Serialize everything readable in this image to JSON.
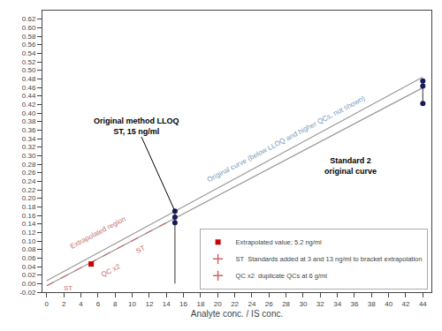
{
  "chart_data": {
    "type": "scatter",
    "xlabel": "Analyte conc. / IS conc.",
    "xlim": [
      -0.5,
      45
    ],
    "ylim": [
      -0.02,
      0.64
    ],
    "xticks": [
      0,
      2,
      4,
      6,
      8,
      10,
      12,
      14,
      16,
      18,
      20,
      22,
      24,
      26,
      28,
      30,
      32,
      34,
      36,
      38,
      40,
      42,
      44
    ],
    "yticks": [
      -0.02,
      {
        "value": 0,
        "label": "0.00"
      },
      0.02,
      0.04,
      0.06,
      0.08,
      {
        "value": 0.1,
        "label": "0.10"
      },
      0.12,
      0.14,
      0.16,
      0.18,
      {
        "value": 0.2,
        "label": "0.20"
      },
      0.22,
      0.24,
      0.26,
      0.28,
      {
        "value": 0.3,
        "label": "0.30"
      },
      0.32,
      0.34,
      0.36,
      0.38,
      {
        "value": 0.4,
        "label": "0.40"
      },
      0.42,
      0.44,
      0.46,
      0.48,
      {
        "value": 0.5,
        "label": "0.50"
      },
      0.52,
      0.54,
      0.56,
      0.58,
      {
        "value": 0.6,
        "label": "0.60"
      },
      0.62
    ],
    "grid": false,
    "legend": "lower right",
    "series": [
      {
        "type": "line",
        "color": "#999999",
        "line_style": "solid",
        "x": [
          0,
          44
        ],
        "values": [
          0.007,
          0.4844
        ]
      },
      {
        "type": "line",
        "color": "#999999",
        "line_style": "solid",
        "x": [
          0,
          44
        ],
        "values": [
          -0.005,
          0.4592
        ]
      },
      {
        "type": "line",
        "color": "#c87070",
        "line_style": "dashed",
        "x": [
          0,
          15
        ],
        "values": [
          -0.005,
          0.15325
        ]
      },
      {
        "type": "line",
        "color": "#555555",
        "line_style": "solid",
        "x": [
          15,
          15
        ],
        "values": [
          0.0,
          0.17
        ]
      },
      {
        "type": "line",
        "color": "#555555",
        "line_style": "solid",
        "x": [
          44,
          44
        ],
        "values": [
          0.422,
          0.475
        ]
      },
      {
        "type": "scatter",
        "color": "#1a1a5a",
        "marker": "circle",
        "x": [
          15,
          15,
          15
        ],
        "values": [
          0.156,
          0.143,
          0.17
        ]
      },
      {
        "type": "scatter",
        "color": "#1a1a5a",
        "marker": "circle",
        "x": [
          44,
          44,
          44
        ],
        "values": [
          0.475,
          0.463,
          0.422
        ]
      },
      {
        "type": "scatter",
        "name": "Extrapolated value; 5.2 ng/ml",
        "color": "#cc0000",
        "marker": "square",
        "x": [
          5.2
        ],
        "values": [
          0.046
        ]
      },
      {
        "type": "scatter",
        "name": "ST  Standards added at 3 and 13 ng/ml to bracket extrapolation",
        "color": "#cc6666",
        "marker": "cross",
        "x": [],
        "values": []
      },
      {
        "type": "scatter",
        "name": "QC x2  duplicate QCs at 6 g/ml",
        "color": "#cc6666",
        "marker": "cross",
        "x": [],
        "values": []
      }
    ],
    "annotations": [
      {
        "text": "Original method LLOQ\nST, 15 ng/ml",
        "color": "#000000"
      },
      {
        "text": "Standard 2\noriginal curve",
        "color": "#000000"
      },
      {
        "text": "Extrapolated region",
        "color": "#c87070"
      },
      {
        "text": "ST",
        "color": "#c87070"
      },
      {
        "text": "QC x2",
        "color": "#c87070"
      },
      {
        "text": "ST",
        "color": "#c87070"
      },
      {
        "text": "Original curve (below LLOQ and higher QCs, not shown)",
        "color": "#7799bb"
      }
    ]
  }
}
